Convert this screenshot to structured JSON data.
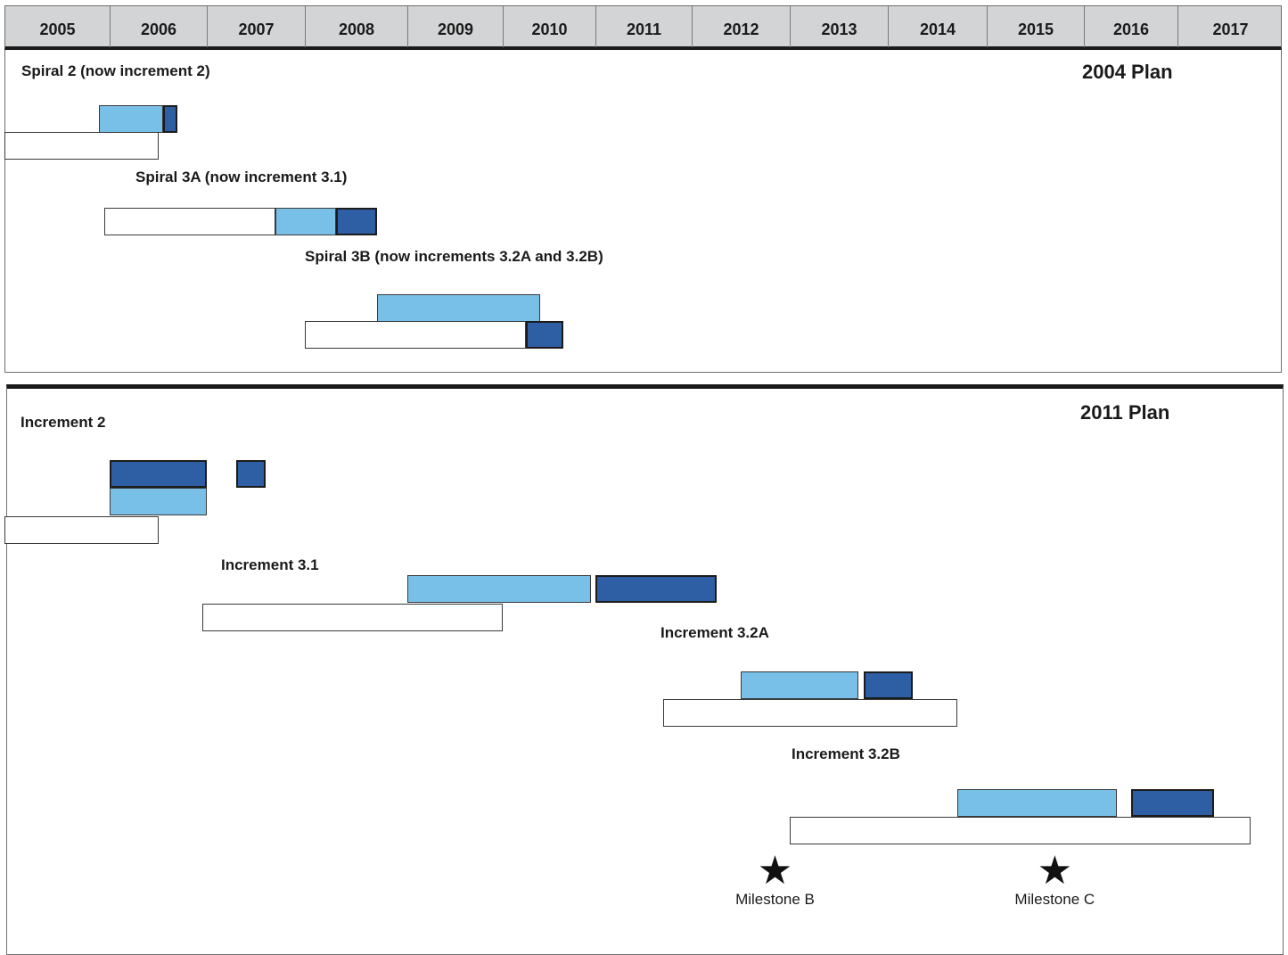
{
  "years": [
    "2005",
    "2006",
    "2007",
    "2008",
    "2009",
    "2010",
    "2011",
    "2012",
    "2013",
    "2014",
    "2015",
    "2016",
    "2017"
  ],
  "colors": {
    "planned": "#ffffff",
    "light": "#79c0e8",
    "dark": "#2e5ea3",
    "header": "#d2d4d6"
  },
  "plans": [
    {
      "title": "2004 Plan",
      "rows": [
        {
          "label": "Spiral 2 (now increment 2)",
          "bars": [
            {
              "kind": "light",
              "start": 2005.9,
              "end": 2006.55,
              "lane": "upper"
            },
            {
              "kind": "dark",
              "start": 2006.55,
              "end": 2006.7,
              "lane": "upper"
            },
            {
              "kind": "white",
              "start": 2005.0,
              "end": 2006.5,
              "lane": "lower"
            }
          ]
        },
        {
          "label": "Spiral 3A (now increment 3.1)",
          "bars": [
            {
              "kind": "white",
              "start": 2005.95,
              "end": 2007.7,
              "lane": "single"
            },
            {
              "kind": "light",
              "start": 2007.7,
              "end": 2008.3,
              "lane": "single"
            },
            {
              "kind": "dark",
              "start": 2008.3,
              "end": 2008.7,
              "lane": "single"
            }
          ]
        },
        {
          "label": "Spiral 3B (now increments 3.2A and 3.2B)",
          "bars": [
            {
              "kind": "light",
              "start": 2008.7,
              "end": 2010.4,
              "lane": "upper"
            },
            {
              "kind": "white",
              "start": 2008.0,
              "end": 2010.25,
              "lane": "lower"
            },
            {
              "kind": "dark",
              "start": 2010.25,
              "end": 2010.65,
              "lane": "lower"
            }
          ]
        }
      ]
    },
    {
      "title": "2011 Plan",
      "rows": [
        {
          "label": "Increment 2",
          "bars": [
            {
              "kind": "dark",
              "start": 2006.0,
              "end": 2007.0,
              "lane": "top"
            },
            {
              "kind": "dark",
              "start": 2007.3,
              "end": 2007.6,
              "lane": "top"
            },
            {
              "kind": "light",
              "start": 2006.0,
              "end": 2007.0,
              "lane": "upper"
            },
            {
              "kind": "white",
              "start": 2005.0,
              "end": 2006.5,
              "lane": "lower"
            }
          ]
        },
        {
          "label": "Increment 3.1",
          "bars": [
            {
              "kind": "light",
              "start": 2009.0,
              "end": 2010.95,
              "lane": "upper"
            },
            {
              "kind": "dark",
              "start": 2011.0,
              "end": 2012.25,
              "lane": "upper"
            },
            {
              "kind": "white",
              "start": 2006.95,
              "end": 2010.0,
              "lane": "lower"
            }
          ]
        },
        {
          "label": "Increment 3.2A",
          "bars": [
            {
              "kind": "light",
              "start": 2012.5,
              "end": 2013.7,
              "lane": "upper"
            },
            {
              "kind": "dark",
              "start": 2013.75,
              "end": 2014.25,
              "lane": "upper"
            },
            {
              "kind": "white",
              "start": 2011.7,
              "end": 2014.7,
              "lane": "lower"
            }
          ]
        },
        {
          "label": "Increment 3.2B",
          "bars": [
            {
              "kind": "light",
              "start": 2014.7,
              "end": 2016.35,
              "lane": "upper"
            },
            {
              "kind": "dark",
              "start": 2016.5,
              "end": 2017.35,
              "lane": "upper"
            },
            {
              "kind": "white",
              "start": 2013.0,
              "end": 2017.7,
              "lane": "lower"
            }
          ]
        }
      ],
      "milestones": [
        {
          "label": "Milestone B",
          "date": 2012.85
        },
        {
          "label": "Milestone C",
          "date": 2015.7
        }
      ]
    }
  ]
}
